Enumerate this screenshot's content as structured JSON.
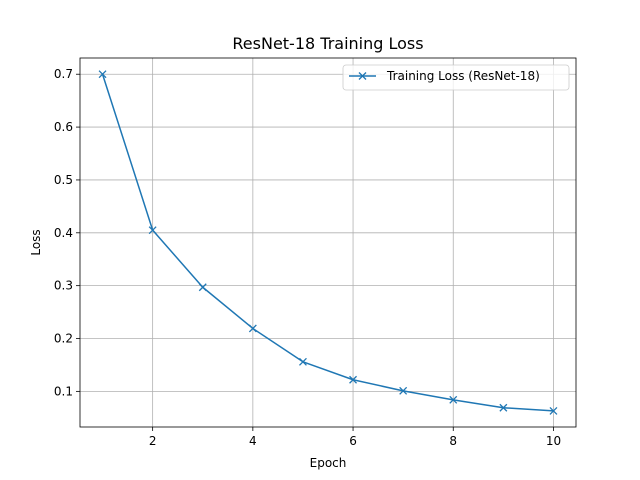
{
  "chart_data": {
    "type": "line",
    "title": "ResNet-18 Training Loss",
    "xlabel": "Epoch",
    "ylabel": "Loss",
    "xlim": [
      0.55,
      10.45
    ],
    "ylim": [
      0.0326,
      0.7307
    ],
    "xticks": [
      2,
      4,
      6,
      8,
      10
    ],
    "yticks": [
      0.1,
      0.2,
      0.3,
      0.4,
      0.5,
      0.6,
      0.7
    ],
    "grid": true,
    "legend_position": "top-right",
    "series": [
      {
        "name": "Training Loss (ResNet-18)",
        "color": "#1f77b4",
        "marker": "x",
        "x": [
          1,
          2,
          3,
          4,
          5,
          6,
          7,
          8,
          9,
          10
        ],
        "y": [
          0.7,
          0.405,
          0.297,
          0.219,
          0.156,
          0.122,
          0.101,
          0.084,
          0.069,
          0.063
        ]
      }
    ]
  }
}
